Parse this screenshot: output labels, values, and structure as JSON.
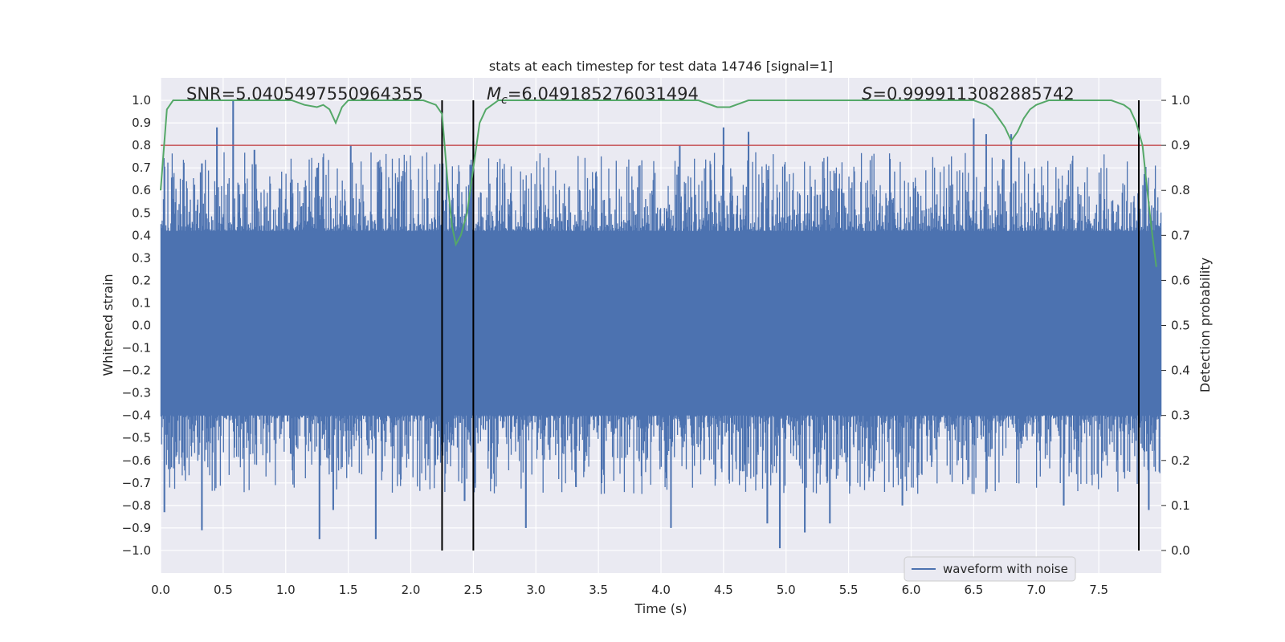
{
  "chart_data": {
    "type": "line",
    "title": "stats at each timestep for test data 14746 [signal=1]",
    "xlabel": "Time (s)",
    "ylabel": "Whitened strain",
    "y2label": "Detection probability",
    "xlim": [
      0.0,
      8.0
    ],
    "ylim": [
      -1.1,
      1.1
    ],
    "y2lim": [
      -0.05,
      1.05
    ],
    "xticks": [
      "0.0",
      "0.5",
      "1.0",
      "1.5",
      "2.0",
      "2.5",
      "3.0",
      "3.5",
      "4.0",
      "4.5",
      "5.0",
      "5.5",
      "6.0",
      "6.5",
      "7.0",
      "7.5"
    ],
    "yticks": [
      "1.0",
      "0.9",
      "0.8",
      "0.7",
      "0.6",
      "0.5",
      "0.4",
      "0.3",
      "0.2",
      "0.1",
      "0.0",
      "−0.1",
      "−0.2",
      "−0.3",
      "−0.4",
      "−0.5",
      "−0.6",
      "−0.7",
      "−0.8",
      "−0.9",
      "−1.0"
    ],
    "y2ticks": [
      "1.0",
      "0.9",
      "0.8",
      "0.7",
      "0.6",
      "0.5",
      "0.4",
      "0.3",
      "0.2",
      "0.1",
      "0.0"
    ],
    "annotations": {
      "snr": "SNR=5.0405497550964355",
      "mc_symbol": "M",
      "mc_sub": "c",
      "mc_value": "=6.049185276031494",
      "s_symbol": "S",
      "s_value": "=0.9999113082885742"
    },
    "legend": {
      "label": "waveform with noise",
      "location": "lower-right"
    },
    "threshold": {
      "value": 0.9,
      "axis": "right",
      "color": "#c44e52"
    },
    "vlines": [
      2.25,
      2.5,
      7.82
    ],
    "series": [
      {
        "name": "waveform with noise",
        "color": "#4c72b0",
        "envelope": {
          "upper": 0.42,
          "lower": -0.4,
          "seed": 14746,
          "count": 1600,
          "spikes_up": [
            [
              0.03,
              0.6
            ],
            [
              0.33,
              0.72
            ],
            [
              0.45,
              0.88
            ],
            [
              0.58,
              1.0
            ],
            [
              0.75,
              0.78
            ],
            [
              1.25,
              0.7
            ],
            [
              1.52,
              0.8
            ],
            [
              1.75,
              0.7
            ],
            [
              2.5,
              0.82
            ],
            [
              4.15,
              0.8
            ],
            [
              4.5,
              0.88
            ],
            [
              4.7,
              0.86
            ],
            [
              6.5,
              0.92
            ],
            [
              6.6,
              0.85
            ],
            [
              6.8,
              0.85
            ],
            [
              7.82,
              0.5
            ]
          ],
          "spikes_down": [
            [
              0.03,
              -0.83
            ],
            [
              0.33,
              -0.91
            ],
            [
              1.27,
              -0.95
            ],
            [
              1.38,
              -0.82
            ],
            [
              1.72,
              -0.95
            ],
            [
              2.43,
              -0.78
            ],
            [
              2.92,
              -0.9
            ],
            [
              4.08,
              -0.9
            ],
            [
              4.85,
              -0.88
            ],
            [
              4.95,
              -0.99
            ],
            [
              5.15,
              -0.92
            ],
            [
              5.35,
              -0.88
            ],
            [
              5.93,
              -0.8
            ],
            [
              7.22,
              -0.8
            ],
            [
              7.9,
              -0.82
            ]
          ]
        }
      },
      {
        "name": "detection probability",
        "color": "#55a868",
        "axis": "right",
        "x": [
          0.0,
          0.05,
          0.1,
          0.15,
          0.3,
          0.6,
          0.9,
          1.0,
          1.05,
          1.15,
          1.25,
          1.3,
          1.35,
          1.4,
          1.45,
          1.5,
          1.6,
          2.0,
          2.1,
          2.2,
          2.25,
          2.3,
          2.33,
          2.36,
          2.4,
          2.45,
          2.5,
          2.55,
          2.6,
          2.7,
          2.8,
          3.0,
          4.3,
          4.45,
          4.55,
          4.7,
          4.9,
          5.5,
          6.0,
          6.5,
          6.6,
          6.65,
          6.7,
          6.75,
          6.8,
          6.85,
          6.9,
          6.95,
          7.0,
          7.1,
          7.4,
          7.6,
          7.7,
          7.75,
          7.8,
          7.85,
          7.88,
          7.92,
          7.96
        ],
        "y": [
          0.8,
          0.98,
          1.0,
          1.0,
          1.0,
          1.0,
          1.0,
          1.0,
          1.0,
          0.99,
          0.985,
          0.99,
          0.98,
          0.95,
          0.985,
          1.0,
          1.0,
          1.0,
          1.0,
          0.99,
          0.97,
          0.8,
          0.72,
          0.68,
          0.7,
          0.75,
          0.85,
          0.95,
          0.98,
          1.0,
          1.0,
          1.0,
          1.0,
          0.985,
          0.985,
          1.0,
          1.0,
          1.0,
          1.0,
          1.0,
          0.99,
          0.98,
          0.96,
          0.94,
          0.91,
          0.93,
          0.96,
          0.98,
          0.99,
          1.0,
          1.0,
          1.0,
          0.99,
          0.98,
          0.95,
          0.9,
          0.82,
          0.72,
          0.63
        ]
      }
    ]
  }
}
